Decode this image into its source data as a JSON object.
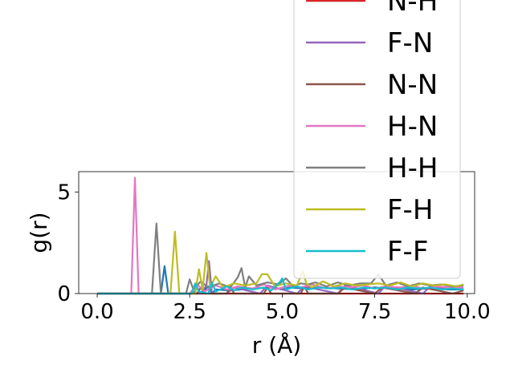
{
  "chart_data": {
    "type": "line",
    "title": "",
    "xlabel": "r (Å)",
    "ylabel": "g(r)",
    "xlim": [
      -0.5,
      10.2
    ],
    "ylim": [
      0,
      6
    ],
    "x_ticks": [
      0.0,
      2.5,
      5.0,
      7.5,
      10.0
    ],
    "x_tick_labels": [
      "0.0",
      "2.5",
      "5.0",
      "7.5",
      "10.0"
    ],
    "y_ticks": [
      0,
      5
    ],
    "y_tick_labels": [
      "0",
      "5"
    ],
    "grid": false,
    "legend": "upper-right, extends above the axes and is cut off at the top",
    "series": [
      {
        "name": "N-H",
        "color": "#d62728",
        "x": [
          0,
          1.0,
          2.0,
          3.0,
          4.0,
          5.0,
          6.0,
          7.0,
          8.0,
          9.0,
          9.9
        ],
        "y": [
          0,
          0,
          0,
          0,
          0,
          0,
          0,
          0,
          0,
          0,
          0
        ]
      },
      {
        "name": "",
        "color": "#1f77b4",
        "x": [
          0,
          1.6,
          1.72,
          1.82,
          1.92,
          2.6,
          2.7,
          2.8,
          3.0,
          3.1,
          3.2,
          3.6,
          3.9,
          4.2,
          4.7,
          5.0,
          5.2,
          5.6,
          6.0,
          6.5,
          7.0,
          7.5,
          8.0,
          8.5,
          9.0,
          9.5,
          9.9
        ],
        "y": [
          0,
          0,
          0,
          1.35,
          0,
          0,
          0.3,
          0,
          0.35,
          0,
          0.2,
          0.15,
          0.2,
          0.25,
          0.3,
          0.2,
          0.3,
          0.25,
          0.3,
          0.25,
          0.2,
          0.3,
          0.25,
          0.2,
          0.25,
          0.2,
          0.2
        ]
      },
      {
        "name": "F-N",
        "color": "#9467bd",
        "x": [
          0,
          2.8,
          2.95,
          3.02,
          3.1,
          3.5,
          3.7,
          4.4,
          4.6,
          5.4,
          5.6,
          6.5,
          6.7,
          7.6,
          7.8,
          8.8,
          9.0,
          9.9
        ],
        "y": [
          0,
          0,
          0.4,
          1.6,
          0,
          0,
          0.3,
          0,
          0.4,
          0,
          0.35,
          0,
          0.4,
          0,
          0.4,
          0,
          0.35,
          0.2
        ]
      },
      {
        "name": "N-N",
        "color": "#8c564b",
        "x": [
          0,
          2.7,
          2.8,
          2.9,
          3.5,
          3.6,
          3.7,
          4.5,
          4.6,
          4.7,
          5.5,
          5.6,
          5.7,
          6.5,
          6.7,
          7.5,
          7.7,
          8.6,
          8.8,
          9.6,
          9.9
        ],
        "y": [
          0,
          0,
          0.3,
          0,
          0,
          0.35,
          0,
          0,
          0.3,
          0,
          0,
          0.35,
          0,
          0,
          0.3,
          0,
          0.3,
          0,
          0.3,
          0,
          0.15
        ]
      },
      {
        "name": "H-N",
        "color": "#e377c2",
        "x": [
          0,
          0.92,
          1.02,
          1.12,
          2.5,
          2.7,
          2.9,
          3.2,
          3.5,
          3.8,
          4.2,
          4.5,
          4.8,
          5.2,
          5.5,
          5.8,
          6.2,
          6.5,
          6.8,
          7.2,
          7.5,
          7.8,
          8.2,
          8.5,
          8.8,
          9.2,
          9.5,
          9.9
        ],
        "y": [
          0,
          0,
          5.7,
          0,
          0,
          0.45,
          0.1,
          0.4,
          0.2,
          0.35,
          0.25,
          0.45,
          0.2,
          0.4,
          0.3,
          0.45,
          0.25,
          0.35,
          0.3,
          0.4,
          0.25,
          0.35,
          0.3,
          0.4,
          0.25,
          0.35,
          0.3,
          0.3
        ]
      },
      {
        "name": "H-H",
        "color": "#7f7f7f",
        "x": [
          0,
          1.48,
          1.6,
          1.72,
          2.4,
          2.5,
          2.6,
          2.8,
          3.0,
          3.3,
          3.6,
          3.8,
          3.9,
          4.0,
          4.1,
          4.3,
          4.6,
          4.9,
          5.1,
          5.3,
          5.5,
          5.7,
          5.9,
          6.2,
          6.5,
          6.8,
          7.1,
          7.4,
          7.6,
          7.8,
          8.1,
          8.4,
          8.7,
          9.0,
          9.3,
          9.6,
          9.9
        ],
        "y": [
          0,
          0,
          3.45,
          0,
          0,
          0.7,
          0.2,
          0.6,
          0.3,
          0.5,
          0.3,
          0.8,
          1.25,
          0.3,
          0.85,
          0.4,
          0.55,
          0.45,
          0.75,
          0.35,
          0.5,
          0.45,
          0.55,
          0.35,
          0.55,
          0.4,
          0.5,
          0.5,
          0.95,
          0.4,
          0.55,
          0.35,
          0.5,
          0.4,
          0.45,
          0.35,
          0.4
        ]
      },
      {
        "name": "F-H",
        "color": "#bcbd22",
        "x": [
          0,
          1.98,
          2.1,
          2.22,
          2.65,
          2.75,
          2.85,
          2.95,
          3.05,
          3.2,
          3.4,
          3.7,
          4.0,
          4.3,
          4.45,
          4.6,
          4.8,
          5.1,
          5.4,
          5.55,
          5.65,
          5.8,
          6.1,
          6.4,
          6.7,
          7.0,
          7.3,
          7.6,
          7.9,
          8.2,
          8.5,
          8.8,
          9.1,
          9.4,
          9.7,
          9.9
        ],
        "y": [
          0,
          0,
          3.05,
          0,
          0,
          1.2,
          0.2,
          2.0,
          0.3,
          0.85,
          0.3,
          0.5,
          0.4,
          0.5,
          0.95,
          0.95,
          0.35,
          0.5,
          0.4,
          1.1,
          0.5,
          0.3,
          0.6,
          0.35,
          0.5,
          0.4,
          0.45,
          0.5,
          0.4,
          0.55,
          0.35,
          0.5,
          0.4,
          0.45,
          0.35,
          0.45
        ]
      },
      {
        "name": "F-F",
        "color": "#17becf",
        "x": [
          0,
          2.55,
          2.65,
          2.75,
          3.0,
          3.1,
          3.2,
          3.5,
          3.7,
          3.9,
          4.2,
          4.5,
          4.7,
          4.95,
          5.0,
          5.1,
          5.4,
          5.7,
          6.0,
          6.3,
          6.6,
          6.9,
          7.2,
          7.5,
          7.8,
          8.1,
          8.4,
          8.7,
          9.0,
          9.3,
          9.6,
          9.9
        ],
        "y": [
          0,
          0,
          0.5,
          0.1,
          0,
          0.55,
          0.1,
          0.35,
          0.15,
          0.3,
          0.2,
          0.3,
          0.15,
          0.6,
          0.75,
          0.2,
          0.35,
          0.2,
          0.3,
          0.25,
          0.3,
          0.2,
          0.3,
          0.25,
          0.3,
          0.2,
          0.3,
          0.25,
          0.3,
          0.2,
          0.25,
          0.2
        ]
      }
    ]
  }
}
